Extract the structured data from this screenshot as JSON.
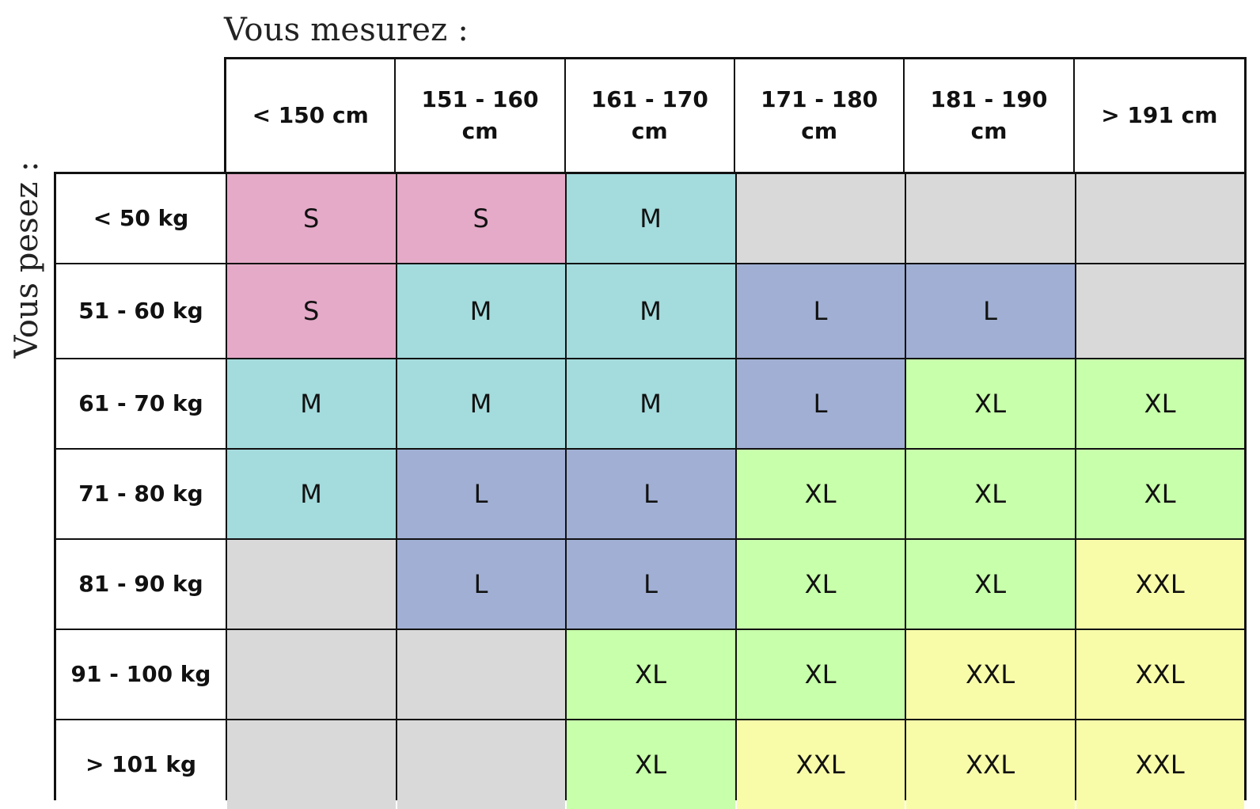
{
  "titles": {
    "height_title": "Vous mesurez :",
    "weight_title": "Vous pesez :"
  },
  "height_columns": [
    "< 150 cm",
    "151 - 160 cm",
    "161 - 170 cm",
    "171 - 180 cm",
    "181 - 190 cm",
    "> 191 cm"
  ],
  "weight_rows": [
    {
      "label": "< 50 kg",
      "sizes": [
        "S",
        "S",
        "M",
        "",
        "",
        ""
      ]
    },
    {
      "label": "51 - 60 kg",
      "sizes": [
        "S",
        "M",
        "M",
        "L",
        "L",
        ""
      ]
    },
    {
      "label": "61 - 70 kg",
      "sizes": [
        "M",
        "M",
        "M",
        "L",
        "XL",
        "XL"
      ]
    },
    {
      "label": "71 - 80 kg",
      "sizes": [
        "M",
        "L",
        "L",
        "XL",
        "XL",
        "XL"
      ]
    },
    {
      "label": "81 - 90 kg",
      "sizes": [
        "",
        "L",
        "L",
        "XL",
        "XL",
        "XXL"
      ]
    },
    {
      "label": "91 - 100 kg",
      "sizes": [
        "",
        "",
        "XL",
        "XL",
        "XXL",
        "XXL"
      ]
    },
    {
      "label": "> 101 kg",
      "sizes": [
        "",
        "",
        "XL",
        "XXL",
        "XXL",
        "XXL"
      ]
    }
  ],
  "size_colors": {
    "S": "#e5aac8",
    "M": "#a4dbdd",
    "L": "#a0afd3",
    "XL": "#c7ffaa",
    "XXL": "#f8fca9",
    "empty": "#d9d9d9"
  }
}
